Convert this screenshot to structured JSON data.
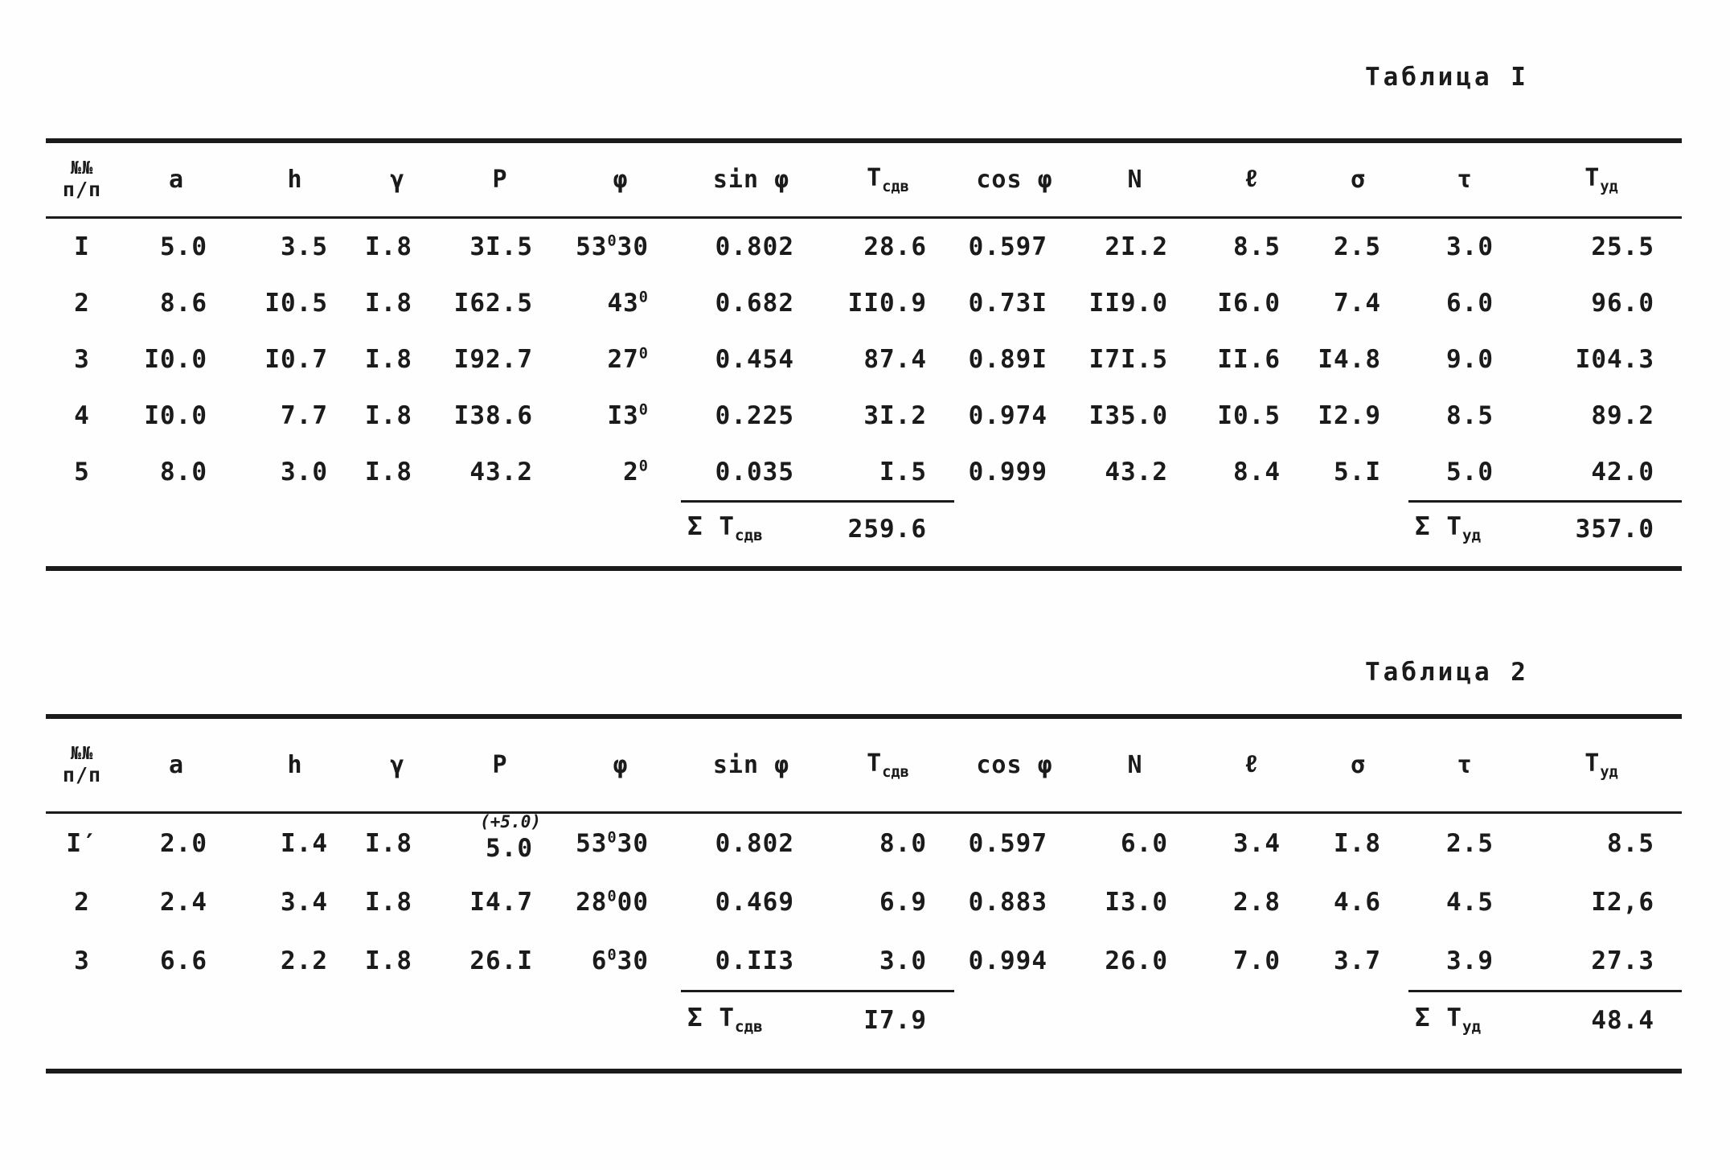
{
  "colors": {
    "ink": "#1b1b1b",
    "paper": "#fefefe"
  },
  "columns": [
    {
      "key": "num",
      "top": "№№",
      "bottom": "п/п"
    },
    {
      "key": "a",
      "label": "a"
    },
    {
      "key": "h",
      "label": "h"
    },
    {
      "key": "gamma",
      "label": "γ"
    },
    {
      "key": "p",
      "label": "P"
    },
    {
      "key": "phi",
      "label": "φ"
    },
    {
      "key": "sin",
      "label": "sin φ"
    },
    {
      "key": "tsdv",
      "label": "Т",
      "sub": "сдв"
    },
    {
      "key": "cos",
      "label": "cos φ"
    },
    {
      "key": "n",
      "label": "N"
    },
    {
      "key": "l",
      "label": "ℓ"
    },
    {
      "key": "sigma",
      "label": "σ"
    },
    {
      "key": "tau",
      "label": "τ"
    },
    {
      "key": "tud",
      "label": "Т",
      "sub": "уд"
    }
  ],
  "table1": {
    "caption": "Таблица I",
    "rows": [
      {
        "num": "I",
        "a": "5.0",
        "h": "3.5",
        "gamma": "I.8",
        "p": "3I.5",
        "phi": {
          "d": "53",
          "m": "30"
        },
        "sin": "0.802",
        "tsdv": "28.6",
        "cos": "0.597",
        "n": "2I.2",
        "l": "8.5",
        "sigma": "2.5",
        "tau": "3.0",
        "tud": "25.5"
      },
      {
        "num": "2",
        "a": "8.6",
        "h": "I0.5",
        "gamma": "I.8",
        "p": "I62.5",
        "phi": {
          "d": "43",
          "m": ""
        },
        "sin": "0.682",
        "tsdv": "II0.9",
        "cos": "0.73I",
        "n": "II9.0",
        "l": "I6.0",
        "sigma": "7.4",
        "tau": "6.0",
        "tud": "96.0"
      },
      {
        "num": "3",
        "a": "I0.0",
        "h": "I0.7",
        "gamma": "I.8",
        "p": "I92.7",
        "phi": {
          "d": "27",
          "m": ""
        },
        "sin": "0.454",
        "tsdv": "87.4",
        "cos": "0.89I",
        "n": "I7I.5",
        "l": "II.6",
        "sigma": "I4.8",
        "tau": "9.0",
        "tud": "I04.3"
      },
      {
        "num": "4",
        "a": "I0.0",
        "h": "7.7",
        "gamma": "I.8",
        "p": "I38.6",
        "phi": {
          "d": "I3",
          "m": ""
        },
        "sin": "0.225",
        "tsdv": "3I.2",
        "cos": "0.974",
        "n": "I35.0",
        "l": "I0.5",
        "sigma": "I2.9",
        "tau": "8.5",
        "tud": "89.2"
      },
      {
        "num": "5",
        "a": "8.0",
        "h": "3.0",
        "gamma": "I.8",
        "p": "43.2",
        "phi": {
          "d": "2",
          "m": ""
        },
        "sin": "0.035",
        "tsdv": "I.5",
        "cos": "0.999",
        "n": "43.2",
        "l": "8.4",
        "sigma": "5.I",
        "tau": "5.0",
        "tud": "42.0"
      }
    ],
    "sum_sdv": {
      "label": "Σ Т",
      "sub": "сдв",
      "value": "259.6"
    },
    "sum_ud": {
      "label": "Σ Т",
      "sub": "уд",
      "value": "357.0"
    }
  },
  "table2": {
    "caption": "Таблица 2",
    "rows": [
      {
        "num": "I′",
        "a": "2.0",
        "h": "I.4",
        "gamma": "I.8",
        "p": "5.0",
        "p_note": "(+5.0)",
        "phi": {
          "d": "53",
          "m": "30"
        },
        "sin": "0.802",
        "tsdv": "8.0",
        "cos": "0.597",
        "n": "6.0",
        "l": "3.4",
        "sigma": "I.8",
        "tau": "2.5",
        "tud": "8.5"
      },
      {
        "num": "2",
        "a": "2.4",
        "h": "3.4",
        "gamma": "I.8",
        "p": "I4.7",
        "phi": {
          "d": "28",
          "m": "00"
        },
        "sin": "0.469",
        "tsdv": "6.9",
        "cos": "0.883",
        "n": "I3.0",
        "l": "2.8",
        "sigma": "4.6",
        "tau": "4.5",
        "tud": "I2,6"
      },
      {
        "num": "3",
        "a": "6.6",
        "h": "2.2",
        "gamma": "I.8",
        "p": "26.I",
        "phi": {
          "d": "6",
          "m": "30"
        },
        "sin": "0.II3",
        "tsdv": "3.0",
        "cos": "0.994",
        "n": "26.0",
        "l": "7.0",
        "sigma": "3.7",
        "tau": "3.9",
        "tud": "27.3"
      }
    ],
    "sum_sdv": {
      "label": "Σ Т",
      "sub": "сдв",
      "value": "I7.9"
    },
    "sum_ud": {
      "label": "Σ Т",
      "sub": "уд",
      "value": "48.4"
    }
  }
}
